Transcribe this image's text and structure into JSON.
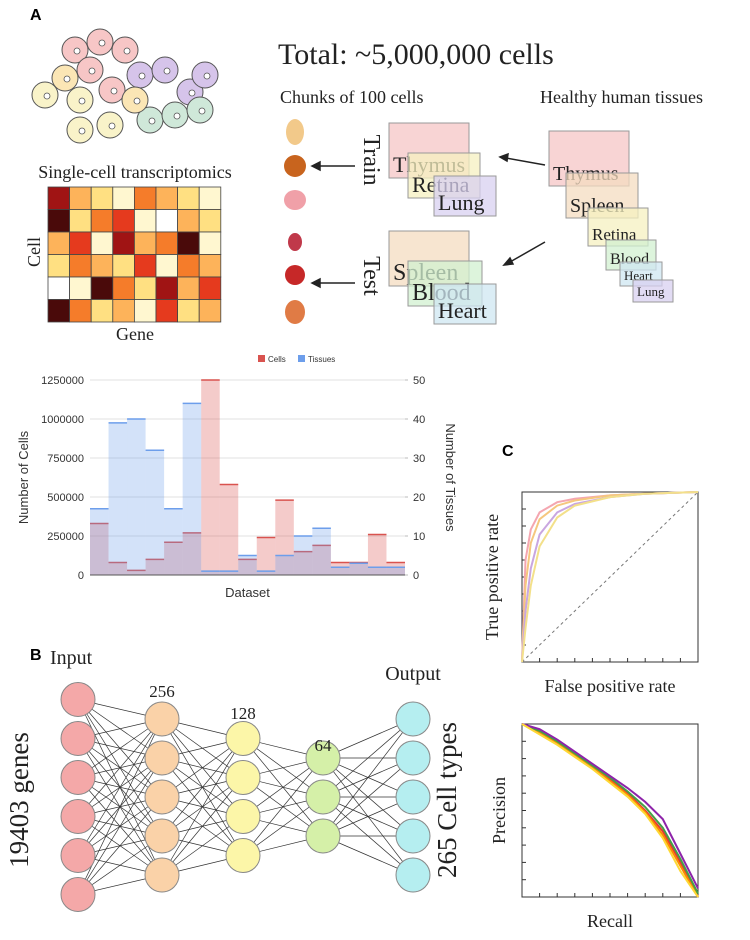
{
  "panel_labels": [
    "A",
    "B",
    "C"
  ],
  "panel_a": {
    "total": "Total: ~5,000,000 cells",
    "chunks": "Chunks of 100 cells",
    "healthy": "Healthy human tissues",
    "transcriptomics": "Single-cell transcriptomics",
    "heatmap_y": "Cell",
    "heatmap_x": "Gene",
    "train": "Train",
    "test": "Test",
    "train_tissues": [
      "Thymus",
      "Retina",
      "Lung"
    ],
    "test_tissues": [
      "Spleen",
      "Blood",
      "Heart"
    ],
    "all_tissues": [
      "Thymus",
      "Spleen",
      "Retina",
      "Blood",
      "Heart",
      "Lung"
    ]
  },
  "panel_b": {
    "input": "Input",
    "output": "Output",
    "layer_sizes": [
      "256",
      "128",
      "64"
    ],
    "genes": "19403 genes",
    "cell_types": "265 Cell types"
  },
  "chart_data": [
    {
      "type": "step",
      "categories": [
        null,
        null,
        null,
        null,
        null,
        null,
        null,
        null,
        null,
        null,
        null,
        null,
        null,
        null,
        null,
        null,
        null
      ],
      "x_label": "Dataset",
      "y_label": "Number of Cells",
      "y2_label": "Number of Tissues",
      "series": [
        {
          "name": "Cells",
          "color": "#d9534f",
          "values": [
            330000,
            80000,
            30000,
            100000,
            210000,
            270000,
            1250000,
            580000,
            100000,
            240000,
            480000,
            150000,
            190000,
            80000,
            80000,
            260000,
            80000
          ]
        },
        {
          "name": "Tissues",
          "color": "#6d9eeb",
          "axis": "y2",
          "values": [
            17,
            39,
            40,
            32,
            17,
            44,
            1,
            1,
            5,
            1,
            5,
            10,
            12,
            2,
            3,
            2,
            2
          ]
        }
      ],
      "ylim": [
        0,
        1250000
      ],
      "yticks": [
        0,
        250000,
        500000,
        750000,
        1000000,
        1250000
      ],
      "y2lim": [
        0,
        50
      ],
      "y2ticks": [
        0,
        10,
        20,
        30,
        40,
        50
      ],
      "grid": true,
      "legend": "top"
    },
    {
      "type": "line",
      "x_label": "False positive rate",
      "y_label": "True positive rate",
      "x": [
        0,
        0.02,
        0.05,
        0.1,
        0.2,
        0.3,
        0.5,
        0.7,
        1
      ],
      "series": [
        {
          "color": "#f4a6b0",
          "values": [
            0,
            0.6,
            0.78,
            0.88,
            0.94,
            0.96,
            0.98,
            0.99,
            1
          ]
        },
        {
          "color": "#f5c77e",
          "values": [
            0,
            0.45,
            0.7,
            0.84,
            0.92,
            0.95,
            0.98,
            0.99,
            1
          ]
        },
        {
          "color": "#c9a6e0",
          "values": [
            0,
            0.3,
            0.55,
            0.75,
            0.88,
            0.93,
            0.97,
            0.99,
            1
          ]
        },
        {
          "color": "#f3e08a",
          "values": [
            0,
            0.2,
            0.45,
            0.68,
            0.85,
            0.92,
            0.97,
            0.99,
            1
          ]
        }
      ],
      "xlim": [
        0,
        1
      ],
      "ylim": [
        0,
        1
      ]
    },
    {
      "type": "line",
      "x_label": "Recall",
      "y_label": "Precision",
      "x": [
        0,
        0.1,
        0.2,
        0.3,
        0.4,
        0.5,
        0.6,
        0.7,
        0.8,
        0.9,
        1
      ],
      "series": [
        {
          "color": "#e53935",
          "values": [
            1,
            0.95,
            0.9,
            0.82,
            0.75,
            0.68,
            0.6,
            0.5,
            0.38,
            0.2,
            0
          ]
        },
        {
          "color": "#fb8c00",
          "values": [
            1,
            0.95,
            0.89,
            0.82,
            0.75,
            0.67,
            0.59,
            0.49,
            0.36,
            0.18,
            0
          ]
        },
        {
          "color": "#43a047",
          "values": [
            1,
            0.96,
            0.9,
            0.83,
            0.76,
            0.69,
            0.61,
            0.52,
            0.4,
            0.22,
            0.02
          ]
        },
        {
          "color": "#8e24aa",
          "values": [
            1,
            0.97,
            0.91,
            0.84,
            0.77,
            0.7,
            0.63,
            0.55,
            0.45,
            0.25,
            0.05
          ]
        },
        {
          "color": "#fdd835",
          "values": [
            1,
            0.94,
            0.88,
            0.81,
            0.74,
            0.66,
            0.58,
            0.48,
            0.34,
            0.15,
            0
          ]
        }
      ],
      "xlim": [
        0,
        1
      ],
      "ylim": [
        0,
        1
      ]
    }
  ]
}
